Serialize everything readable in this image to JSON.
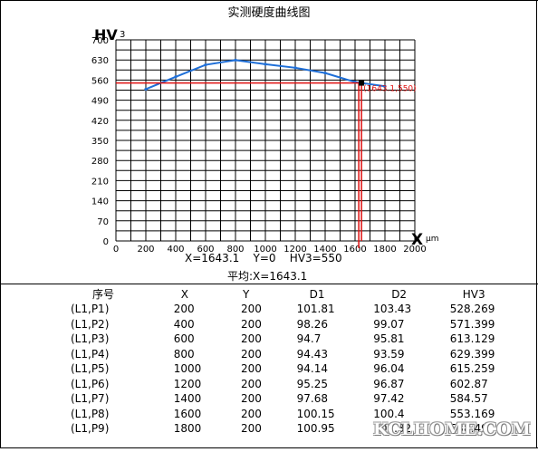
{
  "chart_data": {
    "type": "line",
    "title": "实测硬度曲线图",
    "ylabel": "HV",
    "ylabel_sub": "3",
    "xlabel_marker": "X",
    "xunit": "μm",
    "xlim": [
      0,
      2000
    ],
    "ylim": [
      0,
      700
    ],
    "xticks": [
      0,
      200,
      400,
      600,
      800,
      1000,
      1200,
      1400,
      1600,
      1800,
      2000
    ],
    "yticks": [
      0,
      70,
      140,
      210,
      280,
      350,
      420,
      490,
      560,
      630,
      700
    ],
    "grid": true,
    "series": [
      {
        "x": [
          200,
          400,
          600,
          800,
          1000,
          1200,
          1400,
          1600,
          1800
        ],
        "y": [
          528.269,
          571.399,
          613.129,
          629.399,
          615.259,
          602.87,
          584.57,
          553.169,
          538.49
        ]
      }
    ],
    "marker": {
      "x": 1643.1,
      "y": 550,
      "label": "(1643.1,550)"
    },
    "colors": {
      "line": "#1f6fd8",
      "crosshair": "#e01010",
      "grid": "#000000",
      "marker": "#000000"
    }
  },
  "readout": {
    "xy": "X=1643.1    Y=0    HV3=550",
    "avg": "平均:X=1643.1"
  },
  "table": {
    "headers": [
      "序号",
      "X",
      "Y",
      "D1",
      "D2",
      "HV3"
    ],
    "rows": [
      [
        "(L1,P1)",
        "200",
        "200",
        "101.81",
        "103.43",
        "528.269"
      ],
      [
        "(L1,P2)",
        "400",
        "200",
        "98.26",
        "99.07",
        "571.399"
      ],
      [
        "(L1,P3)",
        "600",
        "200",
        "94.7",
        "95.81",
        "613.129"
      ],
      [
        "(L1,P4)",
        "800",
        "200",
        "94.43",
        "93.59",
        "629.399"
      ],
      [
        "(L1,P5)",
        "1000",
        "200",
        "94.14",
        "96.04",
        "615.259"
      ],
      [
        "(L1,P6)",
        "1200",
        "200",
        "95.25",
        "96.87",
        "602.87"
      ],
      [
        "(L1,P7)",
        "1400",
        "200",
        "97.68",
        "97.42",
        "584.57"
      ],
      [
        "(L1,P8)",
        "1600",
        "200",
        "100.15",
        "100.4",
        "553.169"
      ],
      [
        "(L1,P9)",
        "1800",
        "200",
        "100.95",
        "102.32",
        "538.49"
      ]
    ]
  },
  "watermark": "KCLHOME.COM"
}
